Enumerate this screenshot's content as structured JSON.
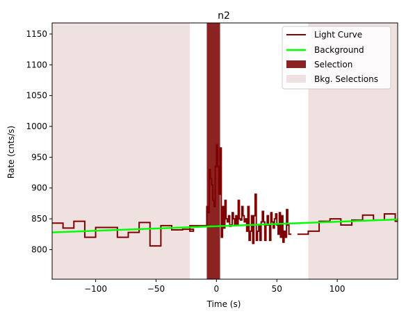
{
  "chart_data": {
    "type": "line",
    "title": "n2",
    "xlabel": "Time (s)",
    "ylabel": "Rate (cnts/s)",
    "xlim": [
      -136,
      150
    ],
    "ylim": [
      752,
      1168
    ],
    "x_ticks": [
      -100,
      -50,
      0,
      50,
      100
    ],
    "y_ticks": [
      800,
      850,
      900,
      950,
      1000,
      1050,
      1100,
      1150
    ],
    "legend_position": "top-right",
    "colors": {
      "light_curve": "#7f0000",
      "background": "#00ff00",
      "selection": "#8b2323",
      "bkg_selection": "#f0e1e1"
    },
    "series": [
      {
        "name": "Light Curve"
      },
      {
        "name": "Background"
      },
      {
        "name": "Selection"
      },
      {
        "name": "Bkg. Selections"
      }
    ],
    "light_curve_steps": [
      [
        -136,
        843
      ],
      [
        -127,
        835
      ],
      [
        -118,
        846
      ],
      [
        -109,
        820
      ],
      [
        -100,
        836
      ],
      [
        -91,
        836
      ],
      [
        -82,
        820
      ],
      [
        -73,
        828
      ],
      [
        -64,
        844
      ],
      [
        -55,
        806
      ],
      [
        -46,
        839
      ],
      [
        -37,
        832
      ],
      [
        -28,
        833
      ],
      [
        -19,
        830
      ],
      [
        -22,
        839
      ],
      [
        -8,
        870
      ],
      [
        -7,
        860
      ],
      [
        -6,
        930
      ],
      [
        -5,
        915
      ],
      [
        -4,
        905
      ],
      [
        -3,
        880
      ],
      [
        -2,
        870
      ],
      [
        -1,
        935
      ],
      [
        0,
        970
      ],
      [
        1,
        935
      ],
      [
        2,
        890
      ],
      [
        3,
        965
      ],
      [
        4,
        820
      ],
      [
        5,
        870
      ],
      [
        6,
        835
      ],
      [
        7,
        880
      ],
      [
        8,
        850
      ],
      [
        9,
        845
      ],
      [
        10,
        855
      ],
      [
        11,
        838
      ],
      [
        12,
        840
      ],
      [
        13,
        860
      ],
      [
        14,
        850
      ],
      [
        15,
        840
      ],
      [
        16,
        855
      ],
      [
        17,
        840
      ],
      [
        18,
        880
      ],
      [
        19,
        850
      ],
      [
        20,
        848
      ],
      [
        21,
        870
      ],
      [
        22,
        855
      ],
      [
        23,
        845
      ],
      [
        24,
        850
      ],
      [
        25,
        830
      ],
      [
        26,
        870
      ],
      [
        27,
        815
      ],
      [
        28,
        830
      ],
      [
        29,
        855
      ],
      [
        30,
        810
      ],
      [
        31,
        855
      ],
      [
        32,
        890
      ],
      [
        33,
        815
      ],
      [
        34,
        830
      ],
      [
        35,
        840
      ],
      [
        36,
        815
      ],
      [
        37,
        845
      ],
      [
        38,
        862
      ],
      [
        39,
        845
      ],
      [
        40,
        815
      ],
      [
        41,
        840
      ],
      [
        42,
        855
      ],
      [
        43,
        840
      ],
      [
        44,
        815
      ],
      [
        45,
        860
      ],
      [
        46,
        845
      ],
      [
        47,
        835
      ],
      [
        48,
        850
      ],
      [
        49,
        858
      ],
      [
        50,
        840
      ],
      [
        51,
        825
      ],
      [
        52,
        860
      ],
      [
        53,
        820
      ],
      [
        54,
        855
      ],
      [
        55,
        812
      ],
      [
        56,
        830
      ],
      [
        57,
        820
      ],
      [
        58,
        865
      ],
      [
        59,
        840
      ],
      [
        60,
        825
      ]
    ],
    "light_curve_late_steps": [
      [
        67,
        825
      ],
      [
        76,
        830
      ],
      [
        85,
        846
      ],
      [
        94,
        850
      ],
      [
        103,
        840
      ],
      [
        112,
        848
      ],
      [
        121,
        856
      ],
      [
        130,
        848
      ],
      [
        139,
        858
      ],
      [
        148,
        846
      ]
    ],
    "background_line": {
      "x": [
        -136,
        150
      ],
      "y": [
        828,
        849
      ]
    },
    "selection_intervals": [
      [
        -8,
        3
      ]
    ],
    "bkg_selection_intervals": [
      [
        -136,
        -22
      ],
      [
        76,
        150
      ]
    ]
  }
}
